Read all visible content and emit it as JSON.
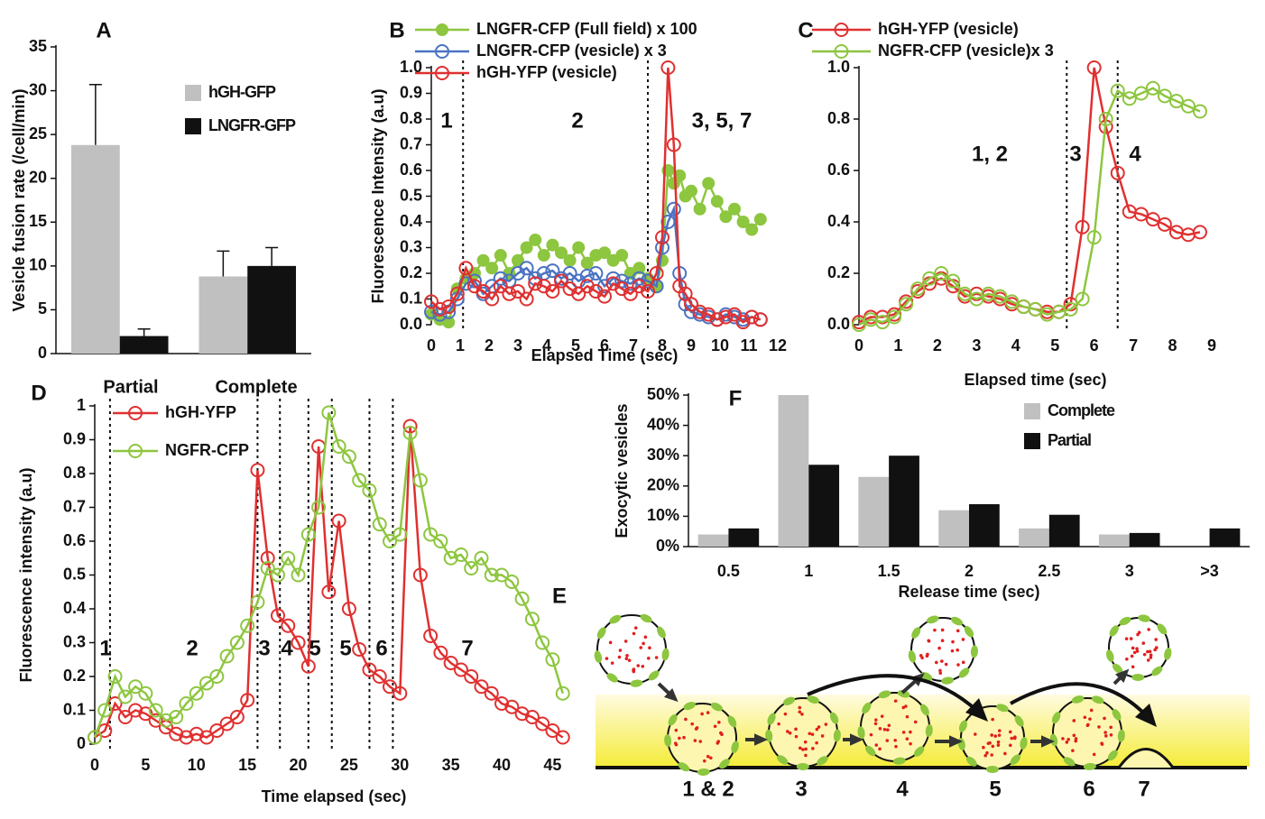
{
  "chart_data": [
    {
      "type": "bar",
      "title": "A",
      "y_label": "Vesicle fusion rate (/cell/min)",
      "categories": [
        null,
        null
      ],
      "series": [
        {
          "name": "hGH-GFP",
          "color": "#c0c0c0",
          "values": [
            23.8,
            8.8
          ],
          "errors": [
            6.9,
            2.9
          ]
        },
        {
          "name": "LNGFR-GFP",
          "color": "#111111",
          "values": [
            2,
            10
          ],
          "errors": [
            0.8,
            2.1
          ]
        }
      ],
      "ylim": [
        0,
        35
      ],
      "yticks": [
        0,
        5,
        10,
        15,
        20,
        25,
        30,
        35
      ],
      "grid": false
    },
    {
      "type": "line",
      "title": "B",
      "x_label": "Elapsed Time (sec)",
      "y_label": "Fluorescence Intensity (a.u)",
      "x": [
        0,
        0.3,
        0.6,
        0.9,
        1.2,
        1.5,
        1.8,
        2.1,
        2.4,
        2.7,
        3.0,
        3.3,
        3.6,
        3.9,
        4.2,
        4.5,
        4.8,
        5.1,
        5.4,
        5.7,
        6.0,
        6.3,
        6.6,
        6.9,
        7.2,
        7.5,
        7.8,
        8.0,
        8.2,
        8.4,
        8.6,
        8.8,
        9.0,
        9.3,
        9.6,
        9.9,
        10.2,
        10.5,
        10.8,
        11.1,
        11.4
      ],
      "series": [
        {
          "name": "LNGFR-CFP (Full field) x 100",
          "color": "#8dc63f",
          "marker": "filled",
          "values": [
            0.04,
            0.02,
            0.01,
            0.14,
            0.18,
            0.2,
            0.25,
            0.22,
            0.27,
            0.2,
            0.25,
            0.3,
            0.33,
            0.27,
            0.31,
            0.28,
            0.25,
            0.3,
            0.24,
            0.27,
            0.28,
            0.25,
            0.27,
            0.2,
            0.22,
            0.18,
            0.15,
            0.25,
            0.6,
            0.55,
            0.58,
            0.5,
            0.52,
            0.45,
            0.55,
            0.48,
            0.42,
            0.45,
            0.4,
            0.37,
            0.41
          ]
        },
        {
          "name": "LNGFR-CFP (vesicle) x 3",
          "color": "#4a73c2",
          "marker": "open",
          "values": [
            0.05,
            0.04,
            0.05,
            0.1,
            0.16,
            0.17,
            0.12,
            0.15,
            0.18,
            0.17,
            0.2,
            0.22,
            0.18,
            0.2,
            0.21,
            0.18,
            0.2,
            0.17,
            0.19,
            0.2,
            0.15,
            0.18,
            0.17,
            0.16,
            0.18,
            0.17,
            0.15,
            0.3,
            0.4,
            0.45,
            0.2,
            0.08,
            0.05,
            0.04,
            0.03,
            0.02,
            0.04,
            0.03,
            0.02,
            0.03,
            0.02
          ]
        },
        {
          "name": "hGH-YFP (vesicle)",
          "color": "#e03030",
          "marker": "open",
          "values": [
            0.09,
            0.06,
            0.07,
            0.12,
            0.22,
            0.15,
            0.13,
            0.1,
            0.15,
            0.12,
            0.13,
            0.1,
            0.16,
            0.15,
            0.13,
            0.17,
            0.14,
            0.12,
            0.15,
            0.13,
            0.11,
            0.16,
            0.14,
            0.12,
            0.15,
            0.13,
            0.2,
            0.34,
            1.0,
            0.7,
            0.15,
            0.12,
            0.08,
            0.05,
            0.04,
            0.02,
            0.03,
            0.04,
            0.01,
            0.03,
            0.02
          ]
        }
      ],
      "xlim": [
        0,
        12
      ],
      "xticks": [
        0,
        1,
        2,
        3,
        4,
        5,
        6,
        7,
        8,
        9,
        10,
        11,
        12
      ],
      "ylim": [
        0,
        1
      ],
      "yticks": [
        {
          "value": 0,
          "label": "0.0"
        },
        0.1,
        0.2,
        0.3,
        0.4,
        0.5,
        0.6,
        0.7,
        0.8,
        0.9,
        {
          "value": 1,
          "label": "1.0"
        }
      ],
      "vlines": [
        1.1,
        7.5
      ],
      "annotations": [
        "1",
        "2",
        "3, 5, 7"
      ]
    },
    {
      "type": "line",
      "title": "C",
      "x_label": "Elapsed time (sec)",
      "x": [
        0,
        0.3,
        0.6,
        0.9,
        1.2,
        1.5,
        1.8,
        2.1,
        2.4,
        2.7,
        3.0,
        3.3,
        3.6,
        3.9,
        4.2,
        4.5,
        4.8,
        5.1,
        5.4,
        5.7,
        6.0,
        6.3,
        6.6,
        6.9,
        7.2,
        7.5,
        7.8,
        8.1,
        8.4,
        8.7
      ],
      "series": [
        {
          "name": "hGH-YFP (vesicle)",
          "color": "#e03030",
          "marker": "open",
          "values": [
            0.01,
            0.03,
            0.03,
            0.04,
            0.09,
            0.13,
            0.16,
            0.18,
            0.15,
            0.11,
            0.12,
            0.11,
            0.1,
            0.08,
            0.07,
            0.06,
            0.05,
            0.05,
            0.08,
            0.38,
            1.0,
            0.77,
            0.59,
            0.44,
            0.43,
            0.41,
            0.39,
            0.36,
            0.35,
            0.36
          ]
        },
        {
          "name": "NGFR-CFP (vesicle)x 3",
          "color": "#8dc63f",
          "marker": "open",
          "values": [
            0,
            0.02,
            0.01,
            0.03,
            0.08,
            0.14,
            0.18,
            0.2,
            0.17,
            0.12,
            0.1,
            0.12,
            0.11,
            0.09,
            0.07,
            0.06,
            0.04,
            0.05,
            0.06,
            0.1,
            0.34,
            0.8,
            0.91,
            0.88,
            0.9,
            0.92,
            0.89,
            0.87,
            0.85,
            0.83
          ]
        }
      ],
      "xlim": [
        0,
        9
      ],
      "xticks": [
        0,
        1,
        2,
        3,
        4,
        5,
        6,
        7,
        8,
        9
      ],
      "ylim": [
        0,
        1
      ],
      "yticks": [
        {
          "value": 0,
          "label": "0.0"
        },
        0.2,
        0.4,
        0.6,
        0.8,
        {
          "value": 1,
          "label": "1.0"
        }
      ],
      "vlines": [
        5.3,
        6.6
      ],
      "annotations": [
        "1, 2",
        "3",
        "4"
      ]
    },
    {
      "type": "line",
      "title": "D",
      "x_label": "Time elapsed (sec)",
      "y_label": "Fluorescence intensity (a.u)",
      "x": [
        0,
        1,
        2,
        3,
        4,
        5,
        6,
        7,
        8,
        9,
        10,
        11,
        12,
        13,
        14,
        15,
        16,
        17,
        18,
        19,
        20,
        21,
        22,
        23,
        24,
        25,
        26,
        27,
        28,
        29,
        30,
        31,
        32,
        33,
        34,
        35,
        36,
        37,
        38,
        39,
        40,
        41,
        42,
        43,
        44,
        45,
        46
      ],
      "series": [
        {
          "name": "hGH-YFP",
          "color": "#e03030",
          "marker": "open",
          "values": [
            0.02,
            0.04,
            0.12,
            0.08,
            0.1,
            0.09,
            0.07,
            0.05,
            0.03,
            0.02,
            0.03,
            0.02,
            0.04,
            0.06,
            0.08,
            0.13,
            0.81,
            0.55,
            0.38,
            0.35,
            0.3,
            0.23,
            0.88,
            0.45,
            0.66,
            0.4,
            0.28,
            0.22,
            0.2,
            0.17,
            0.15,
            0.94,
            0.5,
            0.32,
            0.27,
            0.24,
            0.22,
            0.2,
            0.17,
            0.15,
            0.12,
            0.11,
            0.09,
            0.08,
            0.06,
            0.04,
            0.02
          ]
        },
        {
          "name": "NGFR-CFP",
          "color": "#8dc63f",
          "marker": "open",
          "values": [
            0.02,
            0.1,
            0.2,
            0.14,
            0.17,
            0.15,
            0.1,
            0.07,
            0.08,
            0.12,
            0.15,
            0.18,
            0.2,
            0.26,
            0.3,
            0.35,
            0.42,
            0.52,
            0.5,
            0.55,
            0.5,
            0.62,
            0.7,
            0.98,
            0.88,
            0.85,
            0.78,
            0.75,
            0.65,
            0.6,
            0.62,
            0.92,
            0.78,
            0.62,
            0.6,
            0.55,
            0.56,
            0.52,
            0.55,
            0.5,
            0.5,
            0.48,
            0.43,
            0.37,
            0.3,
            0.25,
            0.15
          ]
        }
      ],
      "xlim": [
        0,
        47
      ],
      "xticks": [
        0,
        5,
        10,
        15,
        20,
        25,
        30,
        35,
        40,
        45
      ],
      "ylim": [
        0,
        1
      ],
      "yticks": [
        0,
        0.1,
        0.2,
        0.3,
        0.4,
        0.5,
        0.6,
        0.7,
        0.8,
        0.9,
        1
      ],
      "vlines": [
        1.5,
        16,
        18.2,
        21,
        23.3,
        27,
        29.3
      ],
      "annotations": [
        "Partial",
        "Complete",
        "1",
        "2",
        "3",
        "4",
        "5",
        "5",
        "6",
        "7"
      ]
    },
    {
      "type": "bar",
      "title": "F",
      "x_label": "Release time (sec)",
      "y_label": "Exocytic vesicles",
      "categories": [
        "0.5",
        "1",
        "1.5",
        "2",
        "2.5",
        "3",
        ">3"
      ],
      "series": [
        {
          "name": "Complete",
          "color": "#c0c0c0",
          "values": [
            4,
            50,
            23,
            12,
            6,
            4,
            0
          ]
        },
        {
          "name": "Partial",
          "color": "#111111",
          "values": [
            6,
            27,
            30,
            14,
            10.5,
            4.5,
            6
          ]
        }
      ],
      "ylim": [
        0,
        50
      ],
      "yticks": [
        {
          "value": 0,
          "label": "0%"
        },
        {
          "value": 10,
          "label": "10%"
        },
        {
          "value": 20,
          "label": "20%"
        },
        {
          "value": 30,
          "label": "30%"
        },
        {
          "value": 40,
          "label": "40%"
        },
        {
          "value": 50,
          "label": "50%"
        }
      ],
      "grid": false
    }
  ],
  "diagram": {
    "title": "E",
    "labels": [
      "1 & 2",
      "3",
      "4",
      "5",
      "6",
      "7"
    ]
  }
}
